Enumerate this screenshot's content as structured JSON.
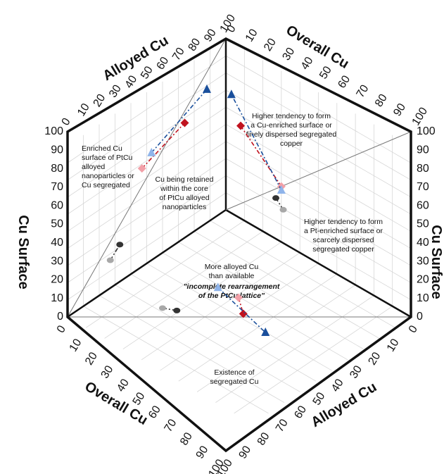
{
  "chart_data": {
    "type": "scatter",
    "title": "",
    "chart_kind": "3D cube (three-face) scatter plot",
    "axis_titles": {
      "alloyed_cu_top": "Alloyed Cu",
      "overall_cu_top": "Overall Cu",
      "cu_surface_left": "Cu Surface",
      "cu_surface_right": "Cu Surface",
      "overall_cu_bottom": "Overall Cu",
      "alloyed_cu_bottom": "Alloyed Cu"
    },
    "axis_range": [
      0,
      100
    ],
    "tick_labels": [
      "0",
      "10",
      "20",
      "30",
      "40",
      "50",
      "60",
      "70",
      "80",
      "90",
      "100"
    ],
    "grid": true,
    "annotations": {
      "left_face_upper": [
        "Enriched Cu",
        "surface of PtCu",
        "alloyed",
        "nanoparticles or",
        "Cu segregated"
      ],
      "left_face_center": [
        "Cu being retained",
        "within the core",
        "of PtCu alloyed",
        "nanoparticles"
      ],
      "right_face_upper": [
        "Higher tendency to form",
        "a Cu-enriched surface or",
        "finely dispersed segregated",
        "copper"
      ],
      "right_face_lower": [
        "Higher tendency to form",
        "a Pt-enriched surface or",
        "scarcely dispersed",
        "segregated copper"
      ],
      "bottom_face_center": [
        "More alloyed Cu",
        "than available"
      ],
      "bottom_face_italic": [
        "\"incomplete rearrangement",
        "of the PtCu lattice\""
      ],
      "bottom_face_lower": [
        "Existence of",
        "segregated Cu"
      ]
    },
    "series_colors": {
      "dark_red": "#c0121e",
      "light_red": "#f2a0a8",
      "dark_blue": "#1a4f9c",
      "light_blue": "#8fb4ea",
      "dark_gray": "#333333",
      "light_gray": "#a8a8a8"
    },
    "faces": [
      {
        "name": "left",
        "axes": [
          "Alloyed Cu",
          "Cu Surface"
        ],
        "pairs": [
          {
            "from": {
              "x": 53,
              "y": 47,
              "color": "light_red"
            },
            "to": {
              "x": 62,
              "y": 74,
              "color": "dark_red"
            }
          },
          {
            "from": {
              "x": 58,
              "y": 53,
              "color": "light_blue"
            },
            "to": {
              "x": 72,
              "y": 88,
              "color": "dark_blue"
            }
          },
          {
            "from": {
              "x": 15,
              "y": 27,
              "color": "light_gray"
            },
            "to": {
              "x": 20,
              "y": 33,
              "color": "dark_gray"
            }
          }
        ]
      },
      {
        "name": "right",
        "axes": [
          "Overall Cu",
          "Cu Surface"
        ],
        "pairs": [
          {
            "from": {
              "x": 30,
              "y": 70,
              "color": "light_red"
            },
            "to": {
              "x": 50,
              "y": 92,
              "color": "dark_red"
            }
          },
          {
            "from": {
              "x": 28,
              "y": 70,
              "color": "light_blue"
            },
            "to": {
              "x": 64,
              "y": 97,
              "color": "dark_blue"
            }
          },
          {
            "from": {
              "x": 18,
              "y": 69,
              "color": "light_gray"
            },
            "to": {
              "x": 22,
              "y": 73,
              "color": "dark_gray"
            }
          }
        ]
      },
      {
        "name": "bottom",
        "axes": [
          "Overall Cu",
          "Alloyed Cu"
        ],
        "pairs": [
          {
            "from": {
              "x": 40,
              "y": 68,
              "color": "light_red"
            },
            "to": {
              "x": 48,
              "y": 63,
              "color": "dark_red"
            }
          },
          {
            "from": {
              "x": 30,
              "y": 65,
              "color": "light_blue"
            },
            "to": {
              "x": 62,
              "y": 63,
              "color": "dark_blue"
            }
          },
          {
            "from": {
              "x": 23,
              "y": 37,
              "color": "light_gray"
            },
            "to": {
              "x": 28,
              "y": 41,
              "color": "dark_gray"
            }
          }
        ]
      }
    ]
  }
}
